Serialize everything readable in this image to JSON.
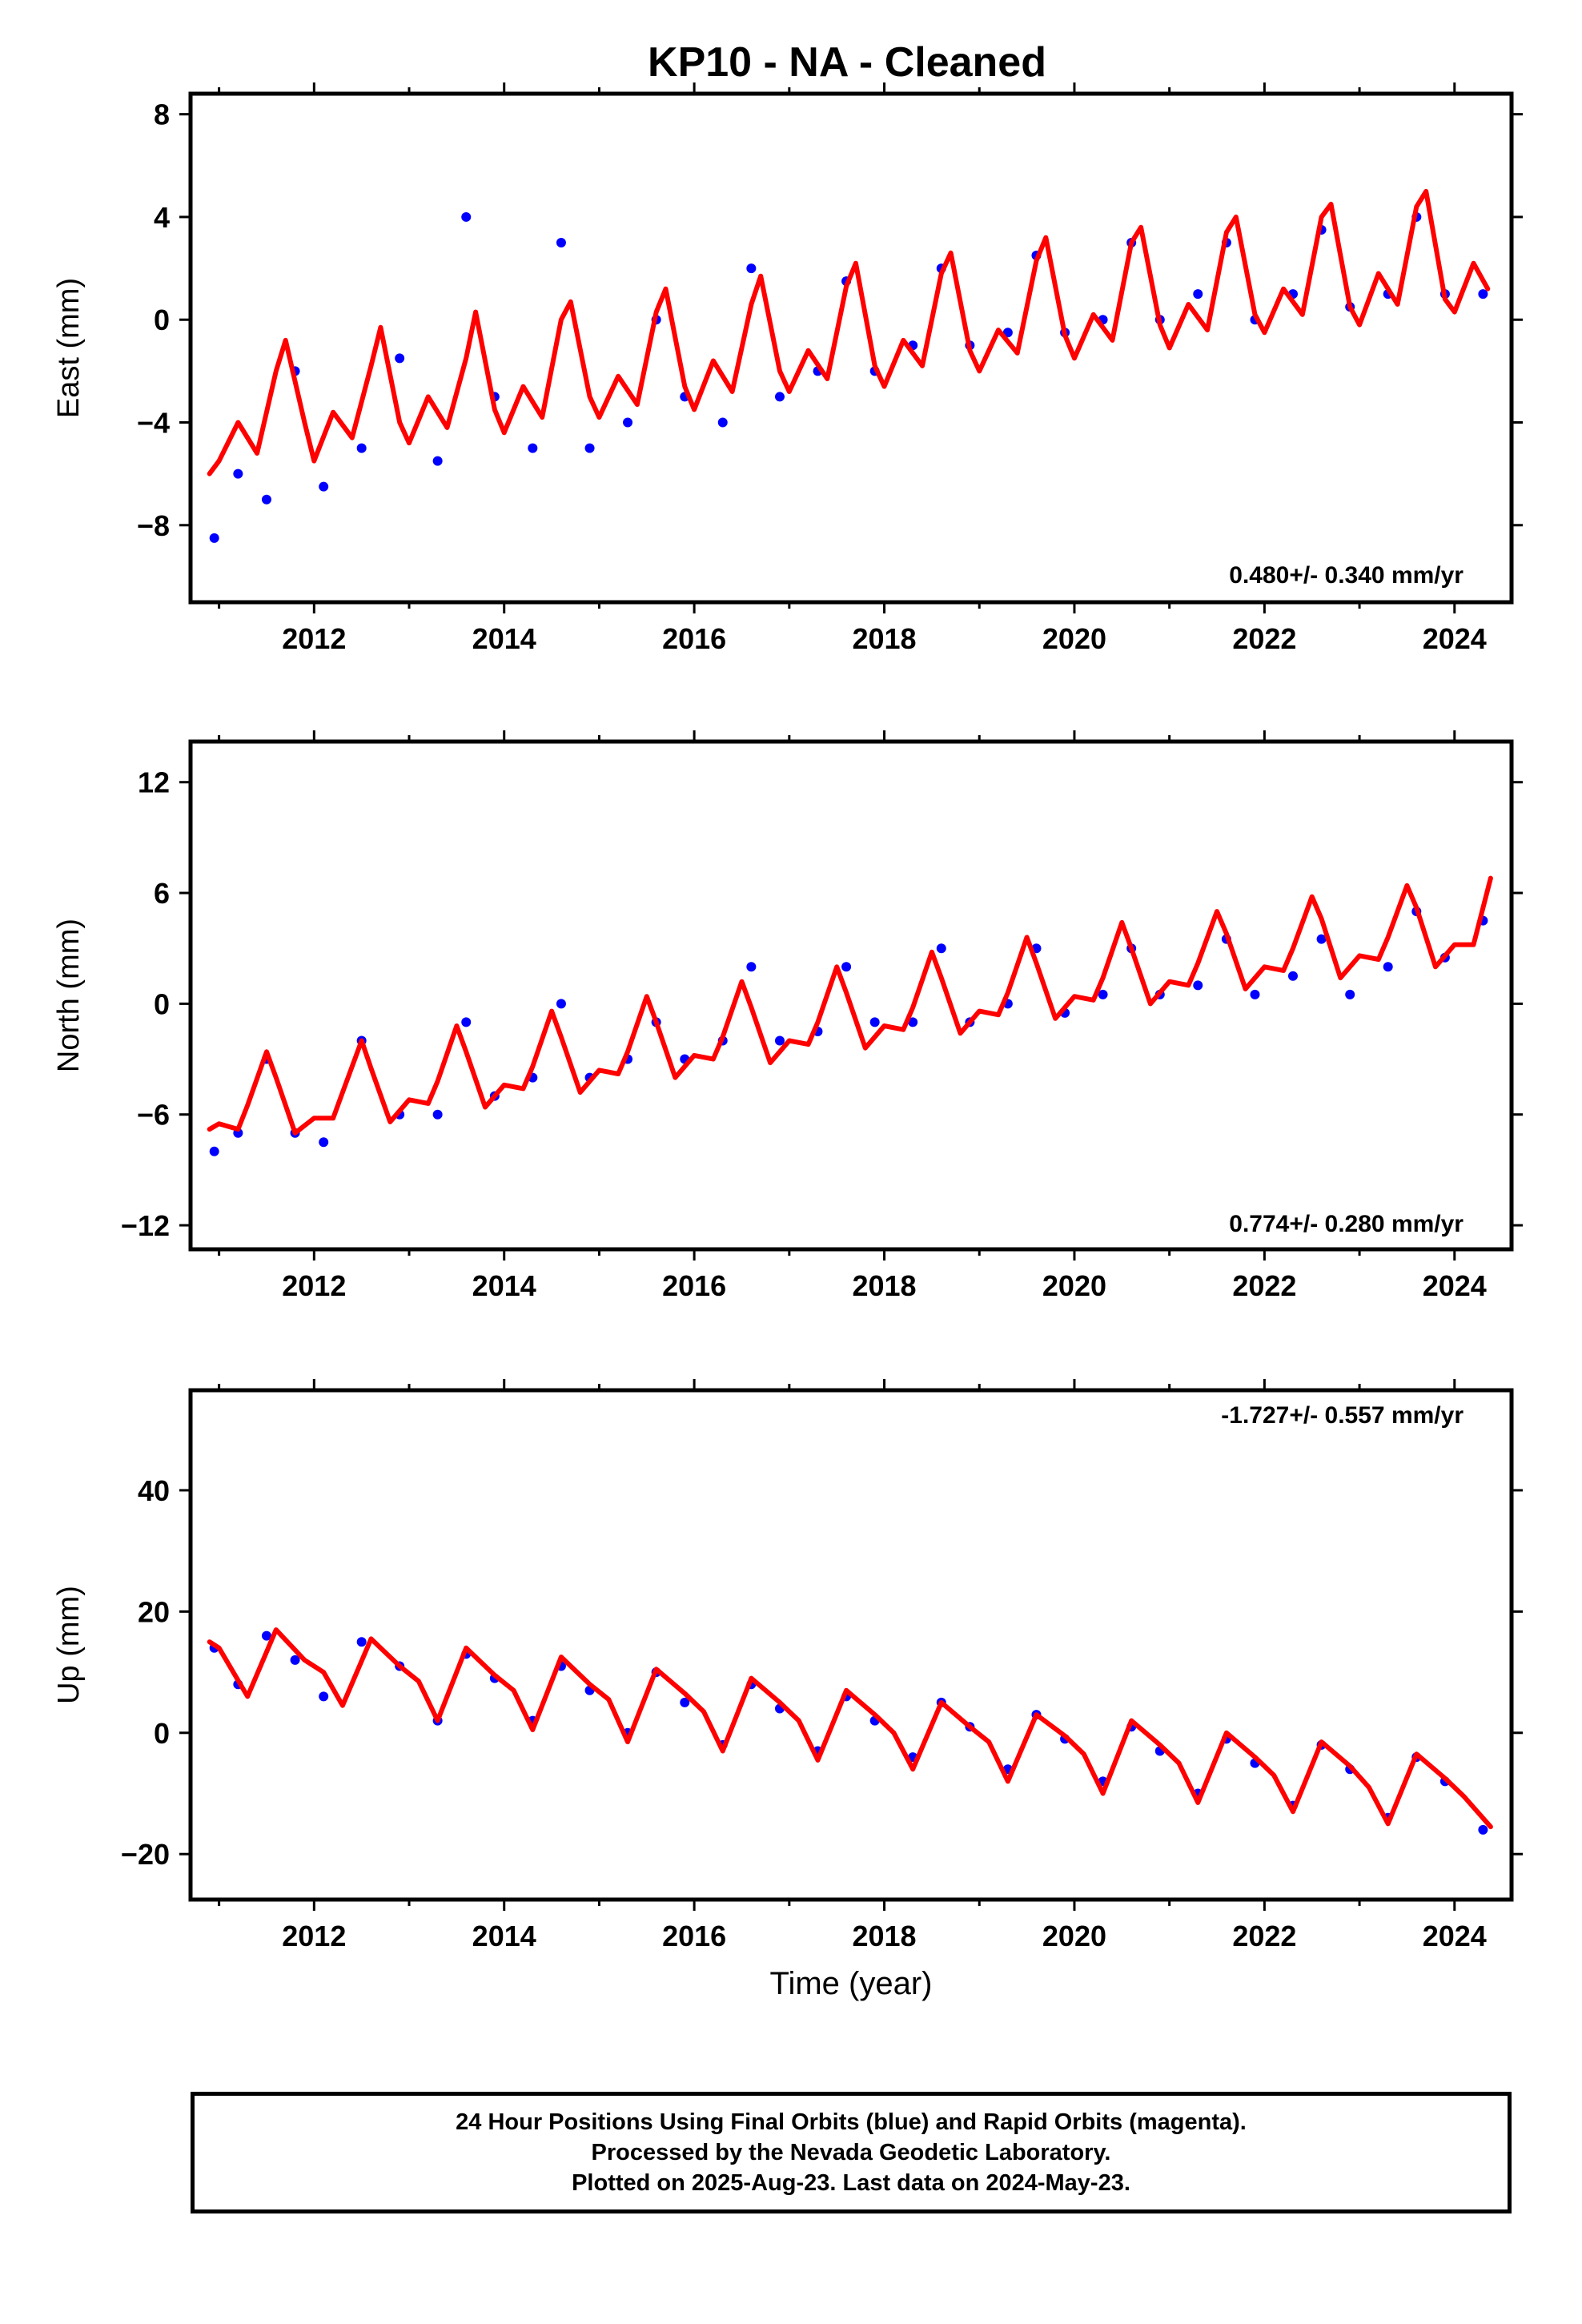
{
  "title": "KP10  - NA - Cleaned",
  "colors": {
    "points": "#0000ff",
    "model": "#ff0000",
    "frame": "#000000"
  },
  "footer": {
    "line1": "24 Hour Positions Using Final Orbits (blue) and Rapid Orbits (magenta).",
    "line2": "Processed by the Nevada Geodetic Laboratory.",
    "line3": "Plotted on 2025-Aug-23. Last data on 2024-May-23."
  },
  "chart_data": [
    {
      "type": "scatter",
      "component": "east",
      "title": "",
      "xlabel": "",
      "ylabel": "East (mm)",
      "xlim": [
        2010.7,
        2024.6
      ],
      "ylim": [
        -11.0,
        8.8
      ],
      "x_ticks": [
        2012,
        2014,
        2016,
        2018,
        2020,
        2022,
        2024
      ],
      "y_ticks": [
        -8,
        -4,
        0,
        4,
        8
      ],
      "grid": false,
      "rate_label": "0.480+/- 0.340 mm/yr",
      "series": [
        {
          "name": "",
          "kind": "points",
          "x": [
            2010.95,
            2011.2,
            2011.5,
            2011.8,
            2012.1,
            2012.5,
            2012.9,
            2013.3,
            2013.6,
            2013.9,
            2014.3,
            2014.6,
            2014.9,
            2015.3,
            2015.6,
            2015.9,
            2016.3,
            2016.6,
            2016.9,
            2017.3,
            2017.6,
            2017.9,
            2018.3,
            2018.6,
            2018.9,
            2019.3,
            2019.6,
            2019.9,
            2020.3,
            2020.6,
            2020.9,
            2021.3,
            2021.6,
            2021.9,
            2022.3,
            2022.6,
            2022.9,
            2023.3,
            2023.6,
            2023.9,
            2024.3
          ],
          "y": [
            -8.5,
            -6.0,
            -7.0,
            -2.0,
            -6.5,
            -5.0,
            -1.5,
            -5.5,
            4.0,
            -3.0,
            -5.0,
            3.0,
            -5.0,
            -4.0,
            0.0,
            -3.0,
            -4.0,
            2.0,
            -3.0,
            -2.0,
            1.5,
            -2.0,
            -1.0,
            2.0,
            -1.0,
            -0.5,
            2.5,
            -0.5,
            0.0,
            3.0,
            0.0,
            1.0,
            3.0,
            0.0,
            1.0,
            3.5,
            0.5,
            1.0,
            4.0,
            1.0,
            1.0
          ]
        },
        {
          "name": "",
          "kind": "model",
          "x": [
            2010.9,
            2011.0,
            2011.2,
            2011.4,
            2011.6,
            2011.7,
            2011.9,
            2012.0,
            2012.2,
            2012.4,
            2012.6,
            2012.7,
            2012.9,
            2013.0,
            2013.2,
            2013.4,
            2013.6,
            2013.7,
            2013.9,
            2014.0,
            2014.2,
            2014.4,
            2014.6,
            2014.7,
            2014.9,
            2015.0,
            2015.2,
            2015.4,
            2015.6,
            2015.7,
            2015.9,
            2016.0,
            2016.2,
            2016.4,
            2016.6,
            2016.7,
            2016.9,
            2017.0,
            2017.2,
            2017.4,
            2017.6,
            2017.7,
            2017.9,
            2018.0,
            2018.2,
            2018.4,
            2018.6,
            2018.7,
            2018.9,
            2019.0,
            2019.2,
            2019.4,
            2019.6,
            2019.7,
            2019.9,
            2020.0,
            2020.2,
            2020.4,
            2020.6,
            2020.7,
            2020.9,
            2021.0,
            2021.2,
            2021.4,
            2021.6,
            2021.7,
            2021.9,
            2022.0,
            2022.2,
            2022.4,
            2022.6,
            2022.7,
            2022.9,
            2023.0,
            2023.2,
            2023.4,
            2023.6,
            2023.7,
            2023.9,
            2024.0,
            2024.2,
            2024.35
          ],
          "y": [
            -6.0,
            -5.5,
            -4.0,
            -5.2,
            -2.0,
            -0.8,
            -4.0,
            -5.5,
            -3.6,
            -4.6,
            -1.8,
            -0.3,
            -4.0,
            -4.8,
            -3.0,
            -4.2,
            -1.5,
            0.3,
            -3.5,
            -4.4,
            -2.6,
            -3.8,
            0.0,
            0.7,
            -3.0,
            -3.8,
            -2.2,
            -3.3,
            0.3,
            1.2,
            -2.6,
            -3.5,
            -1.6,
            -2.8,
            0.6,
            1.7,
            -2.0,
            -2.8,
            -1.2,
            -2.3,
            1.3,
            2.2,
            -1.8,
            -2.6,
            -0.8,
            -1.8,
            1.8,
            2.6,
            -1.2,
            -2.0,
            -0.4,
            -1.3,
            2.3,
            3.2,
            -0.6,
            -1.5,
            0.2,
            -0.8,
            3.0,
            3.6,
            -0.2,
            -1.1,
            0.6,
            -0.4,
            3.4,
            4.0,
            0.2,
            -0.5,
            1.2,
            0.2,
            4.0,
            4.5,
            0.5,
            -0.2,
            1.8,
            0.6,
            4.4,
            5.0,
            0.8,
            0.3,
            2.2,
            1.2
          ]
        }
      ]
    },
    {
      "type": "scatter",
      "component": "north",
      "title": "",
      "xlabel": "",
      "ylabel": "North (mm)",
      "xlim": [
        2010.7,
        2024.6
      ],
      "ylim": [
        -13.3,
        14.2
      ],
      "x_ticks": [
        2012,
        2014,
        2016,
        2018,
        2020,
        2022,
        2024
      ],
      "y_ticks": [
        -12,
        -6,
        0,
        6,
        12
      ],
      "grid": false,
      "rate_label": "0.774+/- 0.280 mm/yr",
      "series": [
        {
          "name": "",
          "kind": "points",
          "x": [
            2010.95,
            2011.2,
            2011.5,
            2011.8,
            2012.1,
            2012.5,
            2012.9,
            2013.3,
            2013.6,
            2013.9,
            2014.3,
            2014.6,
            2014.9,
            2015.3,
            2015.6,
            2015.9,
            2016.3,
            2016.6,
            2016.9,
            2017.3,
            2017.6,
            2017.9,
            2018.3,
            2018.6,
            2018.9,
            2019.3,
            2019.6,
            2019.9,
            2020.3,
            2020.6,
            2020.9,
            2021.3,
            2021.6,
            2021.9,
            2022.3,
            2022.6,
            2022.9,
            2023.3,
            2023.6,
            2023.9,
            2024.3
          ],
          "y": [
            -8.0,
            -7.0,
            -3.0,
            -7.0,
            -7.5,
            -2.0,
            -6.0,
            -6.0,
            -1.0,
            -5.0,
            -4.0,
            0.0,
            -4.0,
            -3.0,
            -1.0,
            -3.0,
            -2.0,
            2.0,
            -2.0,
            -1.5,
            2.0,
            -1.0,
            -1.0,
            3.0,
            -1.0,
            0.0,
            3.0,
            -0.5,
            0.5,
            3.0,
            0.5,
            1.0,
            3.5,
            0.5,
            1.5,
            3.5,
            0.5,
            2.0,
            5.0,
            2.5,
            4.5
          ]
        },
        {
          "name": "",
          "kind": "model",
          "x": [
            2010.9,
            2011.0,
            2011.2,
            2011.3,
            2011.5,
            2011.6,
            2011.8,
            2012.0,
            2012.2,
            2012.3,
            2012.5,
            2012.6,
            2012.8,
            2013.0,
            2013.2,
            2013.3,
            2013.5,
            2013.6,
            2013.8,
            2014.0,
            2014.2,
            2014.3,
            2014.5,
            2014.6,
            2014.8,
            2015.0,
            2015.2,
            2015.3,
            2015.5,
            2015.6,
            2015.8,
            2016.0,
            2016.2,
            2016.3,
            2016.5,
            2016.6,
            2016.8,
            2017.0,
            2017.2,
            2017.3,
            2017.5,
            2017.6,
            2017.8,
            2018.0,
            2018.2,
            2018.3,
            2018.5,
            2018.6,
            2018.8,
            2019.0,
            2019.2,
            2019.3,
            2019.5,
            2019.6,
            2019.8,
            2020.0,
            2020.2,
            2020.3,
            2020.5,
            2020.6,
            2020.8,
            2021.0,
            2021.2,
            2021.3,
            2021.5,
            2021.6,
            2021.8,
            2022.0,
            2022.2,
            2022.3,
            2022.5,
            2022.6,
            2022.8,
            2023.0,
            2023.2,
            2023.3,
            2023.5,
            2023.6,
            2023.8,
            2024.0,
            2024.2,
            2024.38
          ],
          "y": [
            -6.8,
            -6.5,
            -6.8,
            -5.5,
            -2.6,
            -4.0,
            -7.0,
            -6.2,
            -6.2,
            -4.8,
            -2.0,
            -3.5,
            -6.4,
            -5.2,
            -5.4,
            -4.2,
            -1.2,
            -2.6,
            -5.6,
            -4.4,
            -4.6,
            -3.4,
            -0.4,
            -1.8,
            -4.8,
            -3.6,
            -3.8,
            -2.6,
            0.4,
            -1.0,
            -4.0,
            -2.8,
            -3.0,
            -1.8,
            1.2,
            -0.2,
            -3.2,
            -2.0,
            -2.2,
            -1.0,
            2.0,
            0.6,
            -2.4,
            -1.2,
            -1.4,
            -0.2,
            2.8,
            1.4,
            -1.6,
            -0.4,
            -0.6,
            0.6,
            3.6,
            2.2,
            -0.8,
            0.4,
            0.2,
            1.4,
            4.4,
            3.0,
            0.0,
            1.2,
            1.0,
            2.2,
            5.0,
            3.8,
            0.8,
            2.0,
            1.8,
            3.0,
            5.8,
            4.6,
            1.4,
            2.6,
            2.4,
            3.6,
            6.4,
            5.2,
            2.0,
            3.2,
            3.2,
            6.8
          ]
        }
      ]
    },
    {
      "type": "scatter",
      "component": "up",
      "title": "",
      "xlabel": "Time (year)",
      "ylabel": "Up (mm)",
      "xlim": [
        2010.7,
        2024.6
      ],
      "ylim": [
        -27.5,
        56.5
      ],
      "x_ticks": [
        2012,
        2014,
        2016,
        2018,
        2020,
        2022,
        2024
      ],
      "y_ticks": [
        -20,
        0,
        20,
        40
      ],
      "grid": false,
      "rate_label": "-1.727+/- 0.557 mm/yr",
      "series": [
        {
          "name": "",
          "kind": "points",
          "x": [
            2010.95,
            2011.2,
            2011.5,
            2011.8,
            2012.1,
            2012.5,
            2012.9,
            2013.3,
            2013.6,
            2013.9,
            2014.3,
            2014.6,
            2014.9,
            2015.3,
            2015.6,
            2015.9,
            2016.3,
            2016.6,
            2016.9,
            2017.3,
            2017.6,
            2017.9,
            2018.3,
            2018.6,
            2018.9,
            2019.3,
            2019.6,
            2019.9,
            2020.3,
            2020.6,
            2020.9,
            2021.3,
            2021.6,
            2021.9,
            2022.3,
            2022.6,
            2022.9,
            2023.3,
            2023.6,
            2023.9,
            2024.3
          ],
          "y": [
            14.0,
            8.0,
            16.0,
            12.0,
            6.0,
            15.0,
            11.0,
            2.0,
            13.0,
            9.0,
            2.0,
            11.0,
            7.0,
            0.0,
            10.0,
            5.0,
            -2.0,
            8.0,
            4.0,
            -3.0,
            6.0,
            2.0,
            -4.0,
            5.0,
            1.0,
            -6.0,
            3.0,
            -1.0,
            -8.0,
            1.0,
            -3.0,
            -10.0,
            -1.0,
            -5.0,
            -12.0,
            -2.0,
            -6.0,
            -14.0,
            -4.0,
            -8.0,
            -16.0
          ]
        },
        {
          "name": "",
          "kind": "model",
          "x": [
            2010.9,
            2011.0,
            2011.3,
            2011.6,
            2011.9,
            2012.1,
            2012.3,
            2012.6,
            2012.9,
            2013.1,
            2013.3,
            2013.6,
            2013.9,
            2014.1,
            2014.3,
            2014.6,
            2014.9,
            2015.1,
            2015.3,
            2015.6,
            2015.9,
            2016.1,
            2016.3,
            2016.6,
            2016.9,
            2017.1,
            2017.3,
            2017.6,
            2017.9,
            2018.1,
            2018.3,
            2018.6,
            2018.9,
            2019.1,
            2019.3,
            2019.6,
            2019.9,
            2020.1,
            2020.3,
            2020.6,
            2020.9,
            2021.1,
            2021.3,
            2021.6,
            2021.9,
            2022.1,
            2022.3,
            2022.6,
            2022.9,
            2023.1,
            2023.3,
            2023.6,
            2023.9,
            2024.1,
            2024.38
          ],
          "y": [
            15.0,
            14.0,
            6.0,
            17.0,
            12.0,
            10.0,
            4.5,
            15.5,
            11.0,
            8.5,
            2.0,
            14.0,
            9.5,
            7.0,
            0.5,
            12.5,
            8.0,
            5.5,
            -1.5,
            10.5,
            6.5,
            3.5,
            -3.0,
            9.0,
            5.0,
            2.0,
            -4.5,
            7.0,
            3.0,
            0.0,
            -6.0,
            5.0,
            1.0,
            -1.5,
            -8.0,
            3.0,
            -0.5,
            -3.5,
            -10.0,
            2.0,
            -2.0,
            -5.0,
            -11.5,
            0.0,
            -4.0,
            -7.0,
            -13.0,
            -1.5,
            -5.5,
            -9.0,
            -15.0,
            -3.5,
            -7.5,
            -10.5,
            -15.5
          ]
        }
      ]
    }
  ]
}
